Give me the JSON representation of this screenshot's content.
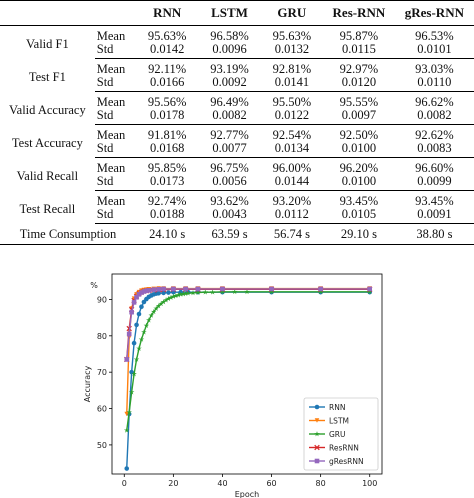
{
  "table": {
    "columns": [
      "",
      "",
      "RNN",
      "LSTM",
      "GRU",
      "Res-RNN",
      "gRes-RNN"
    ],
    "groups": [
      {
        "metric": "Valid F1",
        "rows": [
          {
            "stat": "Mean",
            "values": [
              "95.63%",
              "96.58%",
              "95.63%",
              "95.87%",
              "96.53%"
            ]
          },
          {
            "stat": "Std",
            "values": [
              "0.0142",
              "0.0096",
              "0.0132",
              "0.0115",
              "0.0101"
            ]
          }
        ]
      },
      {
        "metric": "Test F1",
        "rows": [
          {
            "stat": "Mean",
            "values": [
              "92.11%",
              "93.19%",
              "92.81%",
              "92.97%",
              "93.03%"
            ]
          },
          {
            "stat": "Std",
            "values": [
              "0.0166",
              "0.0092",
              "0.0141",
              "0.0120",
              "0.0110"
            ]
          }
        ]
      },
      {
        "metric": "Valid Accuracy",
        "rows": [
          {
            "stat": "Mean",
            "values": [
              "95.56%",
              "96.49%",
              "95.50%",
              "95.55%",
              "96.62%"
            ]
          },
          {
            "stat": "Std",
            "values": [
              "0.0178",
              "0.0082",
              "0.0122",
              "0.0097",
              "0.0082"
            ]
          }
        ]
      },
      {
        "metric": "Test Accuracy",
        "rows": [
          {
            "stat": "Mean",
            "values": [
              "91.81%",
              "92.77%",
              "92.54%",
              "92.50%",
              "92.62%"
            ]
          },
          {
            "stat": "Std",
            "values": [
              "0.0168",
              "0.0077",
              "0.0134",
              "0.0100",
              "0.0083"
            ]
          }
        ]
      },
      {
        "metric": "Valid Recall",
        "rows": [
          {
            "stat": "Mean",
            "values": [
              "95.85%",
              "96.75%",
              "96.00%",
              "96.20%",
              "96.60%"
            ]
          },
          {
            "stat": "Std",
            "values": [
              "0.0173",
              "0.0056",
              "0.0144",
              "0.0100",
              "0.0099"
            ]
          }
        ]
      },
      {
        "metric": "Test Recall",
        "rows": [
          {
            "stat": "Mean",
            "values": [
              "92.74%",
              "93.62%",
              "93.20%",
              "93.45%",
              "93.45%"
            ]
          },
          {
            "stat": "Std",
            "values": [
              "0.0188",
              "0.0043",
              "0.0112",
              "0.0105",
              "0.0091"
            ]
          }
        ]
      }
    ],
    "time_row": {
      "label": "Time Consumption",
      "values": [
        "24.10 s",
        "63.59 s",
        "56.74 s",
        "29.10 s",
        "38.80 s"
      ]
    }
  },
  "chart_data": {
    "type": "line",
    "ylabel": "Accuracy",
    "xlabel": "Epoch",
    "y_unit": "%",
    "xlim": [
      -5,
      105
    ],
    "ylim": [
      42,
      97
    ],
    "xticks": [
      "0",
      "20",
      "40",
      "60",
      "80",
      "100"
    ],
    "yticks": [
      "50",
      "60",
      "70",
      "80",
      "90"
    ],
    "legend_position": "lower-right",
    "grid": false,
    "series": [
      {
        "name": "RNN",
        "color": "#1f77b4",
        "marker": "circle",
        "x": [
          1,
          2,
          3,
          4,
          5,
          6,
          7,
          8,
          9,
          10,
          11,
          12,
          13,
          14,
          16,
          18,
          20,
          23,
          26,
          30,
          40,
          60,
          80,
          100
        ],
        "values": [
          43.5,
          58.5,
          70,
          78,
          83,
          86,
          88,
          89.3,
          90.1,
          90.7,
          91.1,
          91.4,
          91.6,
          91.7,
          91.8,
          91.9,
          92.0,
          92.0,
          92.0,
          92.0,
          92.0,
          92.0,
          92.0,
          92.0
        ]
      },
      {
        "name": "LSTM",
        "color": "#ff7f0e",
        "marker": "triangle-down",
        "x": [
          1,
          2,
          3,
          4,
          5,
          6,
          7,
          8,
          9,
          10,
          12,
          14,
          16,
          20,
          25,
          30,
          40,
          60,
          80,
          100
        ],
        "values": [
          58.5,
          79.5,
          87.5,
          90.2,
          91.4,
          92.0,
          92.4,
          92.6,
          92.7,
          92.8,
          92.9,
          93.0,
          93.0,
          93.0,
          93.0,
          93.0,
          93.0,
          93.0,
          93.0,
          93.0
        ]
      },
      {
        "name": "GRU",
        "color": "#2ca02c",
        "marker": "star",
        "x": [
          1,
          2,
          3,
          4,
          5,
          6,
          7,
          8,
          9,
          10,
          11,
          12,
          13,
          14,
          15,
          16,
          17,
          18,
          19,
          20,
          21,
          22,
          23,
          24,
          25,
          26,
          28,
          30,
          33,
          36,
          40,
          45,
          50,
          60,
          80,
          100
        ],
        "values": [
          54,
          59,
          64.5,
          69.5,
          73.5,
          76.5,
          79,
          81,
          82.8,
          84.3,
          85.6,
          86.6,
          87.5,
          88.2,
          88.8,
          89.3,
          89.8,
          90.2,
          90.5,
          90.8,
          91.0,
          91.2,
          91.4,
          91.5,
          91.6,
          91.7,
          91.8,
          91.9,
          92.0,
          92.0,
          92.1,
          92.1,
          92.1,
          92.1,
          92.1,
          92.1
        ]
      },
      {
        "name": "ResRNN",
        "color": "#d62728",
        "marker": "x",
        "x": [
          1,
          2,
          3,
          4,
          5,
          6,
          7,
          8,
          9,
          10,
          12,
          14,
          16,
          20,
          25,
          30,
          40,
          60,
          80,
          100
        ],
        "values": [
          73.5,
          82,
          87.2,
          89.7,
          90.9,
          91.6,
          92.0,
          92.3,
          92.4,
          92.5,
          92.6,
          92.7,
          92.7,
          92.8,
          92.8,
          92.8,
          92.8,
          92.8,
          92.8,
          92.8
        ]
      },
      {
        "name": "gResRNN",
        "color": "#9467bd",
        "marker": "square",
        "x": [
          1,
          2,
          3,
          4,
          5,
          6,
          7,
          8,
          9,
          10,
          12,
          14,
          16,
          20,
          25,
          30,
          40,
          60,
          80,
          100
        ],
        "values": [
          73.5,
          80.5,
          86.5,
          89.2,
          90.6,
          91.4,
          91.9,
          92.2,
          92.4,
          92.5,
          92.7,
          92.8,
          92.9,
          92.9,
          92.9,
          92.9,
          92.9,
          92.9,
          92.9,
          92.9
        ]
      }
    ]
  }
}
